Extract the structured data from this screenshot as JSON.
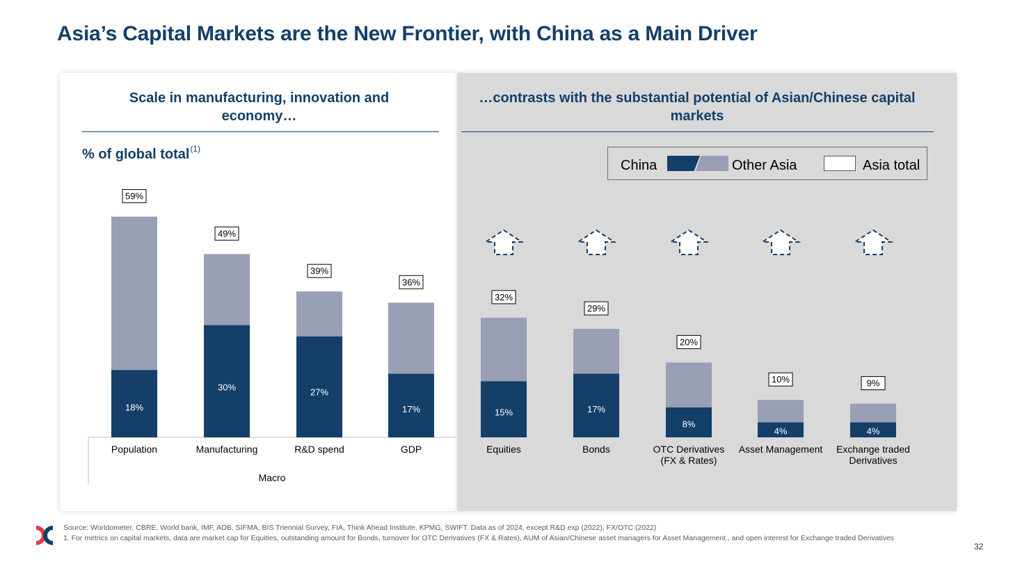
{
  "title": "Asia’s Capital Markets are the New Frontier, with China as a Main Driver",
  "left_panel": {
    "heading": "Scale in manufacturing, innovation and economy…",
    "ylabel": "% of global total",
    "ylabel_note": "(1)",
    "group_label": "Macro"
  },
  "right_panel": {
    "heading": "…contrasts with the substantial potential of Asian/Chinese capital markets"
  },
  "legend": {
    "china": "China",
    "other_asia": "Other Asia",
    "asia_total": "Asia total"
  },
  "colors": {
    "china": "#133f69",
    "other_asia": "#999fb5",
    "title": "#133f69",
    "right_panel_bg": "#d9d9d9"
  },
  "chart_data": {
    "type": "bar",
    "stacked": true,
    "unit": "%",
    "categories": [
      "Population",
      "Manufacturing",
      "R&D spend",
      "GDP",
      "Equities",
      "Bonds",
      "OTC Derivatives (FX & Rates)",
      "Asset Management",
      "Exchange traded Derivatives"
    ],
    "category_lines": [
      [
        "Population"
      ],
      [
        "Manufacturing"
      ],
      [
        "R&D spend"
      ],
      [
        "GDP"
      ],
      [
        "Equities"
      ],
      [
        "Bonds"
      ],
      [
        "OTC Derivatives",
        "(FX & Rates)"
      ],
      [
        "Asset Management"
      ],
      [
        "Exchange traded",
        "Derivatives"
      ]
    ],
    "series": [
      {
        "name": "China",
        "values": [
          18,
          30,
          27,
          17,
          15,
          17,
          8,
          4,
          4
        ]
      },
      {
        "name": "Other Asia",
        "values": [
          41,
          19,
          12,
          19,
          17,
          12,
          12,
          6,
          5
        ]
      }
    ],
    "totals": [
      59,
      49,
      39,
      36,
      32,
      29,
      20,
      10,
      9
    ],
    "china_labels": [
      "18%",
      "30%",
      "27%",
      "17%",
      "15%",
      "17%",
      "8%",
      "4%",
      "4%"
    ],
    "total_labels": [
      "59%",
      "49%",
      "39%",
      "36%",
      "32%",
      "29%",
      "20%",
      "10%",
      "9%"
    ],
    "potential_arrows": [
      "Equities",
      "Bonds",
      "OTC Derivatives (FX & Rates)",
      "Asset Management",
      "Exchange traded Derivatives"
    ],
    "ylim": [
      0,
      60
    ]
  },
  "footnotes": {
    "source": "Source: Worldometer, CBRE, World bank, IMF, ADB, SIFMA, BIS Triennial Survey, FIA, Think Ahead Institute, KPMG, SWIFT. Data as of 2024, except R&D exp (2022), FX/OTC (2022)",
    "note1": "1. For metrics on capital markets, data are market cap for Equities, outstanding amount for Bonds, turnover for OTC Derivatives (FX & Rates), AUM of Asian/Chinese asset managers for Asset Management., and open interest for Exchange traded Derivatives"
  },
  "page_number": "32",
  "logo": {
    "name": "hkex-logo-icon",
    "colors": [
      "#e63946",
      "#133f69"
    ]
  }
}
